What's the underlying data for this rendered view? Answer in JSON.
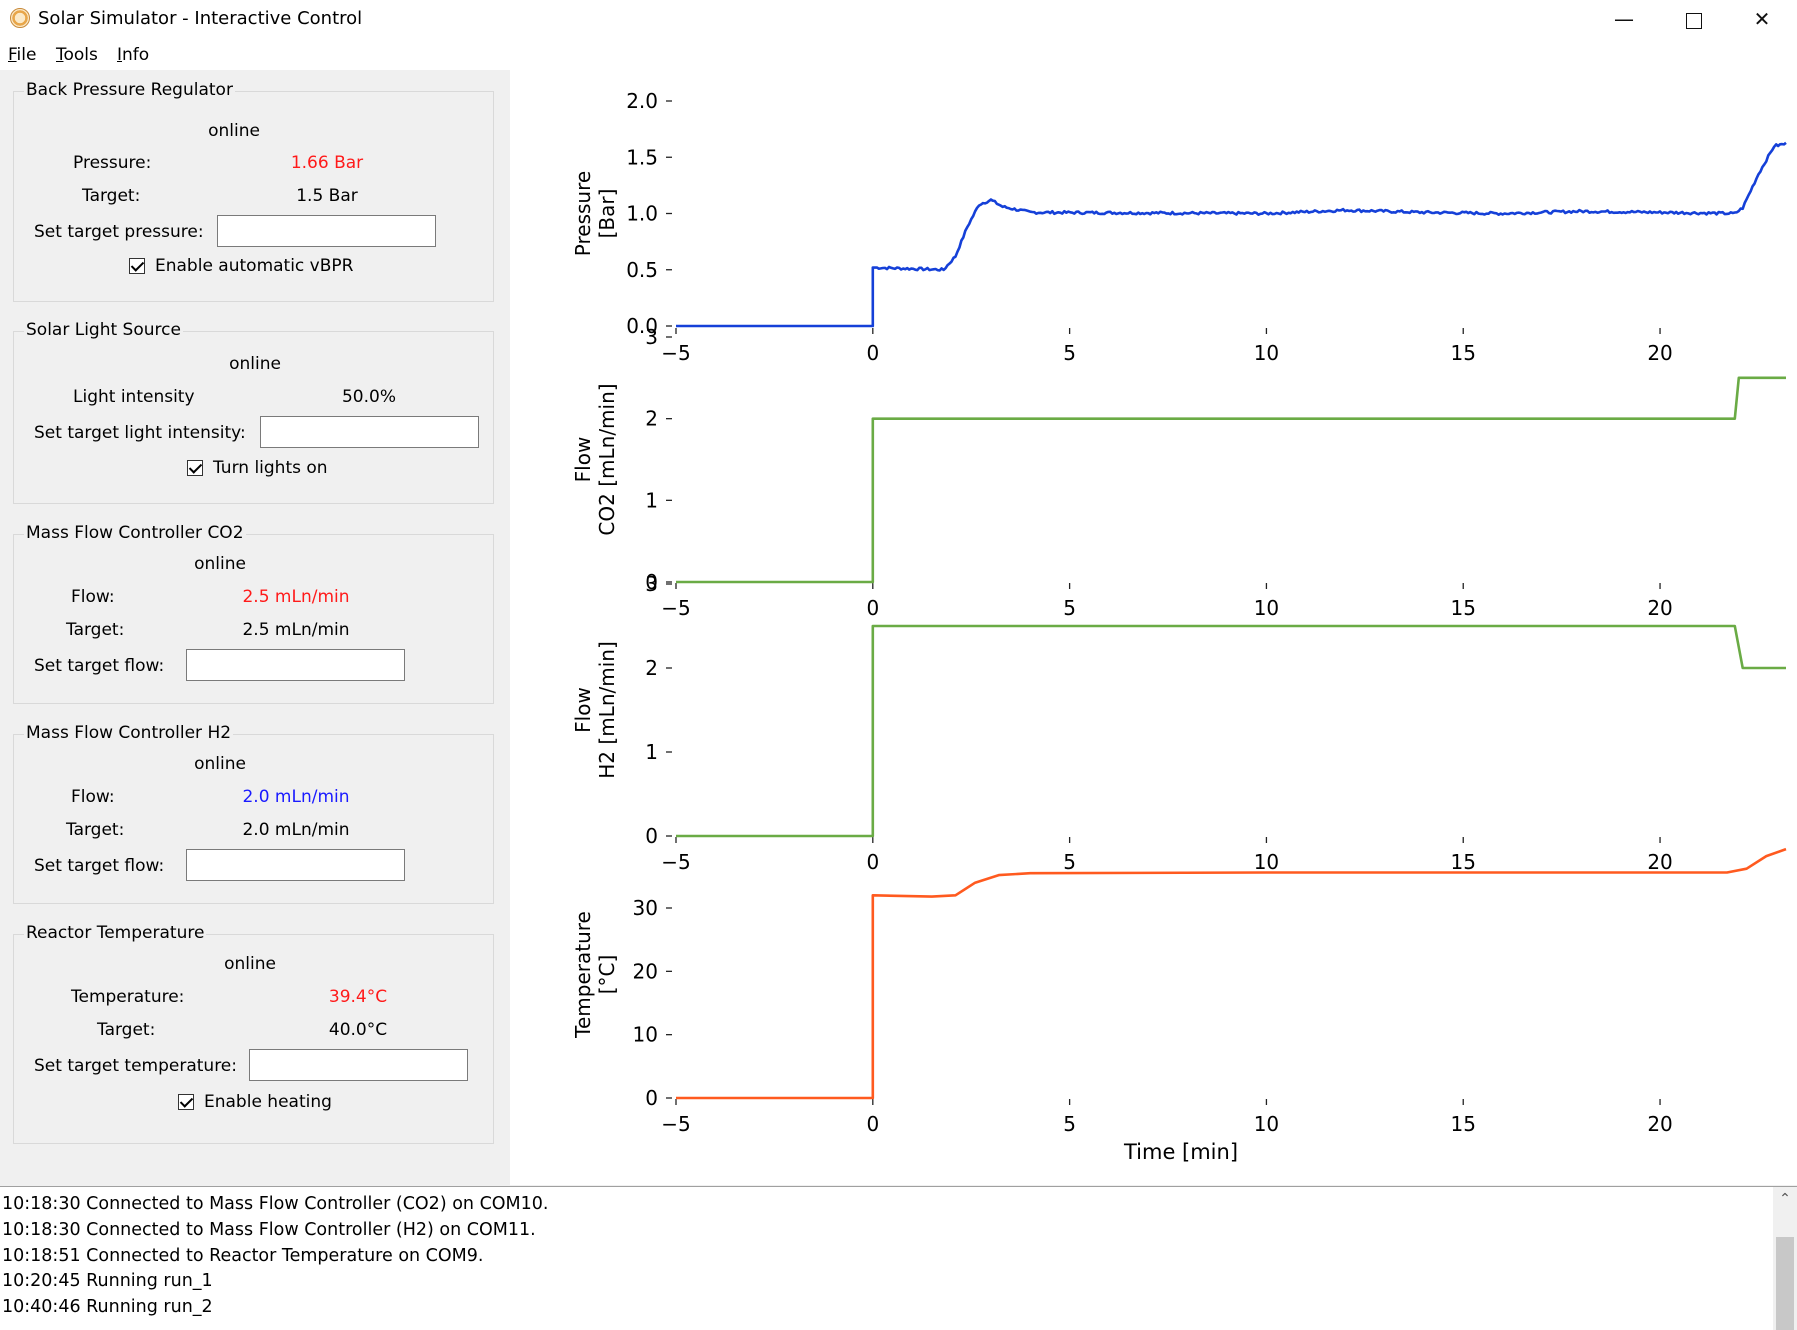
{
  "window": {
    "title": "Solar Simulator - Interactive Control"
  },
  "menu": [
    {
      "key": "F",
      "rest": "ile"
    },
    {
      "key": "T",
      "rest": "ools"
    },
    {
      "key": "I",
      "rest": "nfo"
    }
  ],
  "panels": {
    "bpr": {
      "title": "Back Pressure Regulator",
      "status": "online",
      "value_label": "Pressure:",
      "value": "1.66 Bar",
      "target_label": "Target:",
      "target": "1.5 Bar",
      "set_label": "Set target pressure:",
      "set_value": "",
      "checkbox_label": "Enable automatic vBPR",
      "checkbox_checked": true
    },
    "light": {
      "title": "Solar Light Source",
      "status": "online",
      "value_label": "Light intensity",
      "value": "50.0%",
      "set_label": "Set target light intensity:",
      "set_value": "",
      "checkbox_label": "Turn lights on",
      "checkbox_checked": true
    },
    "mfc_co2": {
      "title": "Mass Flow Controller CO2",
      "status": "online",
      "value_label": "Flow:",
      "value": "2.5 mLn/min",
      "target_label": "Target:",
      "target": "2.5 mLn/min",
      "set_label": "Set target flow:",
      "set_value": ""
    },
    "mfc_h2": {
      "title": "Mass Flow Controller H2",
      "status": "online",
      "value_label": "Flow:",
      "value": "2.0 mLn/min",
      "target_label": "Target:",
      "target": "2.0 mLn/min",
      "set_label": "Set target flow:",
      "set_value": ""
    },
    "temp": {
      "title": "Reactor Temperature",
      "status": "online",
      "value_label": "Temperature:",
      "value": "39.4°C",
      "target_label": "Target:",
      "target": "40.0°C",
      "set_label": "Set target temperature:",
      "set_value": "",
      "checkbox_label": "Enable heating",
      "checkbox_checked": true
    }
  },
  "colors": {
    "alert": "#ff1a1a",
    "info": "#1a1aff",
    "pressure": "#1540d8",
    "flow": "#6aab45",
    "temperature": "#ff5a1f"
  },
  "log": [
    "10:18:30 Connected to Mass Flow Controller (CO2) on COM10.",
    "10:18:30 Connected to Mass Flow Controller (H2) on COM11.",
    "10:18:51 Connected to Reactor Temperature on COM9.",
    "10:20:45 Running run_1",
    "10:40:46 Running run_2"
  ],
  "chart_data": [
    {
      "type": "line",
      "ylabel": [
        "Pressure",
        "[Bar]"
      ],
      "xlabel": "",
      "xlim": [
        -5,
        23.2
      ],
      "ylim": [
        0,
        2.0
      ],
      "xticks": [
        -5,
        0,
        5,
        10,
        15,
        20
      ],
      "xtick_labels": [
        "−5",
        "0",
        "5",
        "10",
        "15",
        "20"
      ],
      "yticks": [
        0,
        0.5,
        1.0,
        1.5,
        2.0
      ],
      "ytick_labels": [
        "0.0",
        "0.5",
        "1.0",
        "1.5",
        "2.0"
      ],
      "series": [
        {
          "color": "#1540d8",
          "noise": 0.012,
          "points": [
            [
              -5,
              0
            ],
            [
              0,
              0
            ],
            [
              0,
              0.52
            ],
            [
              1.8,
              0.5
            ],
            [
              2.1,
              0.62
            ],
            [
              2.4,
              0.88
            ],
            [
              2.7,
              1.08
            ],
            [
              3.0,
              1.12
            ],
            [
              3.3,
              1.06
            ],
            [
              4,
              1.01
            ],
            [
              10,
              1.0
            ],
            [
              12,
              1.03
            ],
            [
              14,
              1.01
            ],
            [
              16,
              1.0
            ],
            [
              18,
              1.02
            ],
            [
              20,
              1.01
            ],
            [
              21.9,
              1.0
            ],
            [
              22.1,
              1.05
            ],
            [
              22.5,
              1.35
            ],
            [
              22.9,
              1.6
            ],
            [
              23.2,
              1.62
            ]
          ]
        }
      ]
    },
    {
      "type": "line",
      "ylabel": [
        "Flow",
        "CO2 [mLn/min]"
      ],
      "xlabel": "",
      "xlim": [
        -5,
        23.2
      ],
      "ylim": [
        0,
        3
      ],
      "xticks": [
        -5,
        0,
        5,
        10,
        15,
        20
      ],
      "xtick_labels": [
        "−5",
        "0",
        "5",
        "10",
        "15",
        "20"
      ],
      "yticks": [
        0,
        1,
        2,
        3
      ],
      "ytick_labels": [
        "0",
        "1",
        "2",
        "3"
      ],
      "series": [
        {
          "color": "#6aab45",
          "noise": 0,
          "points": [
            [
              -5,
              0
            ],
            [
              0,
              0
            ],
            [
              0,
              2
            ],
            [
              21.9,
              2
            ],
            [
              22.0,
              2.5
            ],
            [
              23.2,
              2.5
            ]
          ]
        }
      ]
    },
    {
      "type": "line",
      "ylabel": [
        "Flow",
        "H2 [mLn/min]"
      ],
      "xlabel": "",
      "xlim": [
        -5,
        23.2
      ],
      "ylim": [
        0,
        3
      ],
      "xticks": [
        -5,
        0,
        5,
        10,
        15,
        20
      ],
      "xtick_labels": [
        "−5",
        "0",
        "5",
        "10",
        "15",
        "20"
      ],
      "yticks": [
        0,
        1,
        2,
        3
      ],
      "ytick_labels": [
        "0",
        "1",
        "2",
        "3"
      ],
      "series": [
        {
          "color": "#6aab45",
          "noise": 0,
          "points": [
            [
              -5,
              0
            ],
            [
              0,
              0
            ],
            [
              0,
              2.5
            ],
            [
              21.9,
              2.5
            ],
            [
              22.1,
              2.0
            ],
            [
              23.2,
              2.0
            ]
          ]
        }
      ]
    },
    {
      "type": "line",
      "ylabel": [
        "Temperature",
        "[°C]"
      ],
      "xlabel": "Time [min]",
      "xlim": [
        -5,
        23.2
      ],
      "ylim": [
        0,
        39
      ],
      "xticks": [
        -5,
        0,
        5,
        10,
        15,
        20
      ],
      "xtick_labels": [
        "−5",
        "0",
        "5",
        "10",
        "15",
        "20"
      ],
      "yticks": [
        0,
        10,
        20,
        30
      ],
      "ytick_labels": [
        "0",
        "10",
        "20",
        "30"
      ],
      "series": [
        {
          "color": "#ff5a1f",
          "noise": 0,
          "points": [
            [
              -5,
              0
            ],
            [
              0,
              0
            ],
            [
              0,
              32
            ],
            [
              1.5,
              31.8
            ],
            [
              2.1,
              32
            ],
            [
              2.6,
              34
            ],
            [
              3.2,
              35.2
            ],
            [
              4,
              35.5
            ],
            [
              10,
              35.6
            ],
            [
              21.7,
              35.6
            ],
            [
              22.2,
              36.2
            ],
            [
              22.7,
              38.2
            ],
            [
              23.2,
              39.3
            ]
          ]
        }
      ]
    }
  ]
}
